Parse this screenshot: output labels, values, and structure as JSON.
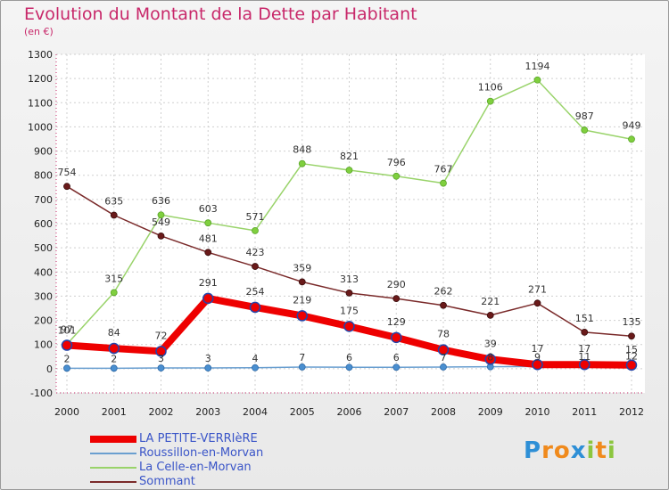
{
  "chart_data": {
    "type": "line",
    "title": "Evolution du Montant de la Dette par Habitant",
    "subtitle": "(en €)",
    "x": [
      "2000",
      "2001",
      "2002",
      "2003",
      "2004",
      "2005",
      "2006",
      "2007",
      "2008",
      "2009",
      "2010",
      "2011",
      "2012"
    ],
    "ylim": [
      -100,
      1300
    ],
    "yticks": [
      -100,
      0,
      100,
      200,
      300,
      400,
      500,
      600,
      700,
      800,
      900,
      1000,
      1100,
      1200,
      1300
    ],
    "grid": true,
    "legend_position": "bottom-left",
    "series": [
      {
        "name": "LA PETITE-VERRIèRE",
        "color": "#ee0000",
        "values": [
          97,
          84,
          72,
          291,
          254,
          219,
          175,
          129,
          78,
          39,
          17,
          17,
          15
        ]
      },
      {
        "name": "Roussillon-en-Morvan",
        "color": "#6a9fd0",
        "values": [
          2,
          2,
          3,
          3,
          4,
          7,
          6,
          6,
          7,
          8,
          9,
          11,
          12
        ]
      },
      {
        "name": "La Celle-en-Morvan",
        "color": "#99d36a",
        "values": [
          101,
          315,
          636,
          603,
          571,
          848,
          821,
          796,
          767,
          1106,
          1194,
          987,
          949
        ]
      },
      {
        "name": "Sommant",
        "color": "#7a2a2a",
        "values": [
          754,
          635,
          549,
          481,
          423,
          359,
          313,
          290,
          262,
          221,
          271,
          151,
          135
        ]
      }
    ],
    "data_labels": [
      [
        "97",
        "84",
        "72",
        "291",
        "254",
        "219",
        "175",
        "129",
        "78",
        "39",
        "17",
        "17",
        "15"
      ],
      [
        "2",
        "2",
        "3",
        "3",
        "4",
        "7",
        "6",
        "6",
        "7",
        "8",
        "9",
        "11",
        "12"
      ],
      [
        "101",
        "315",
        "636",
        "603",
        "571",
        "848",
        "821",
        "796",
        "767",
        "1106",
        "1194",
        "987",
        "949"
      ],
      [
        "754",
        "635",
        "549",
        "481",
        "423",
        "359",
        "313",
        "290",
        "262",
        "221",
        "271",
        "151",
        "135"
      ]
    ]
  },
  "logo": {
    "letters": [
      "P",
      "r",
      "o",
      "x",
      "i",
      "t",
      "i"
    ],
    "colors": [
      "#2e8fd6",
      "#f08a1c",
      "#f08a1c",
      "#2e8fd6",
      "#8cc63f",
      "#f08a1c",
      "#8cc63f"
    ]
  }
}
